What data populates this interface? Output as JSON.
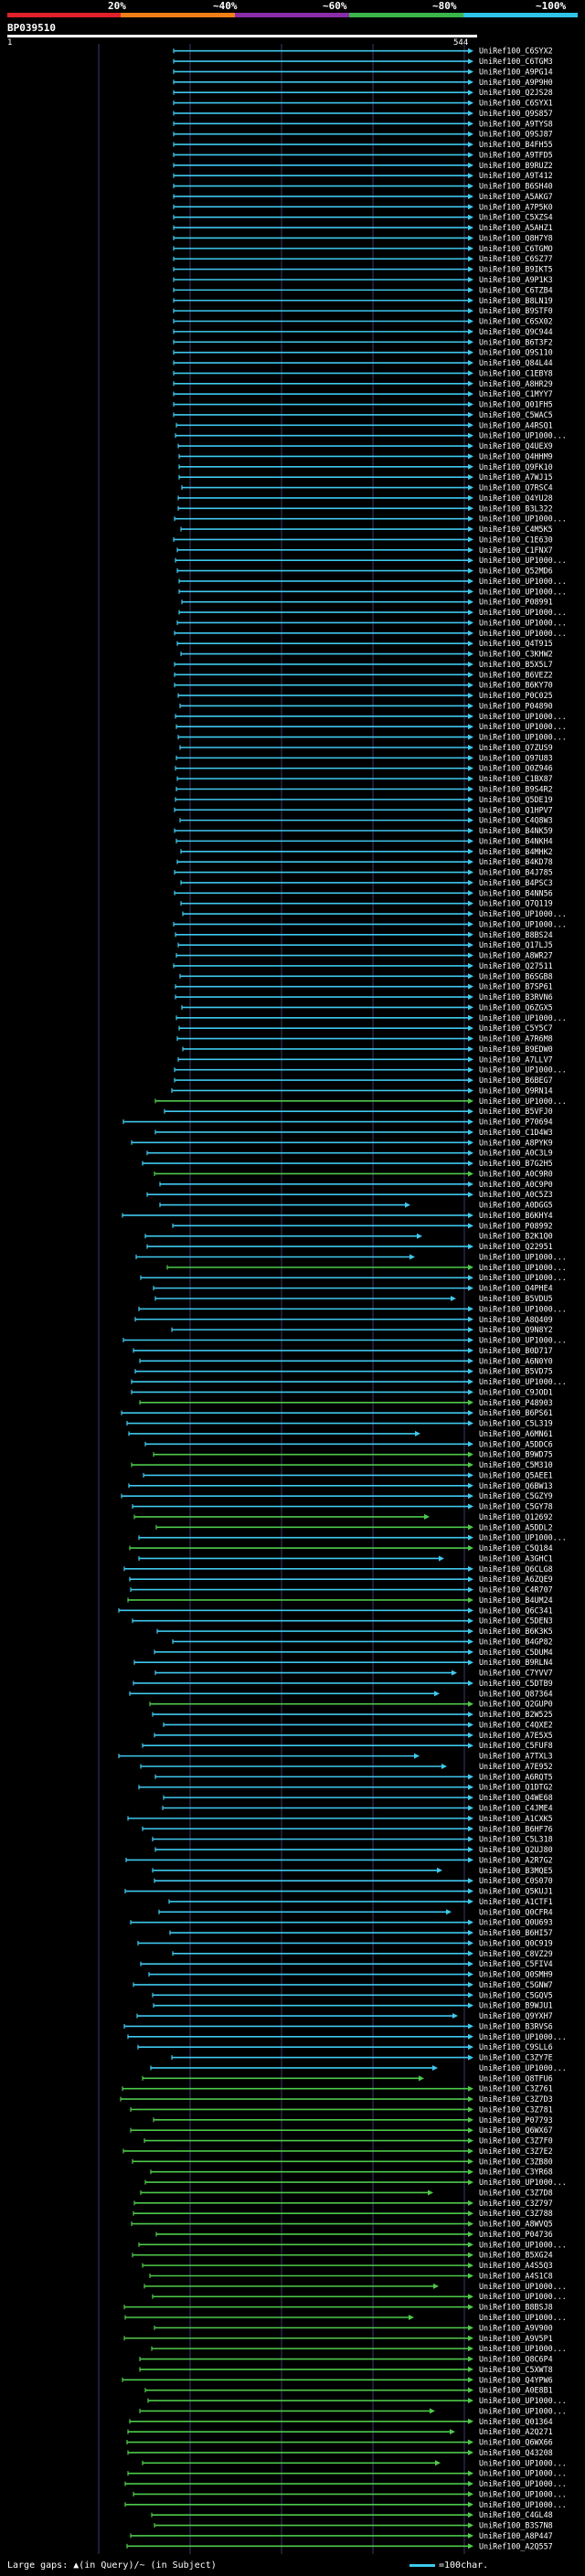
{
  "scale": {
    "labels": [
      "20%",
      "~40%",
      "~60%",
      "~80%",
      "~100%"
    ],
    "colors": [
      "#e0202a",
      "#f07f18",
      "#8b2ca8",
      "#3ab54a",
      "#2ec4e8"
    ]
  },
  "query": {
    "id": "BP039510",
    "start": "1",
    "end": "544"
  },
  "colors": {
    "cyan": "#3fc8ee",
    "green": "#4ec94a",
    "grid": "#3a3a6a"
  },
  "hits": [
    "UniRef100_C6SYX2",
    "UniRef100_C6TGM3",
    "UniRef100_A9PG14",
    "UniRef100_A9P9H0",
    "UniRef100_Q2JS28",
    "UniRef100_C6SYX1",
    "UniRef100_Q9S857",
    "UniRef100_A9TYS8",
    "UniRef100_Q9SJ87",
    "UniRef100_B4FH55",
    "UniRef100_A9TFD5",
    "UniRef100_B9RUZ2",
    "UniRef100_A9T412",
    "UniRef100_B6SH40",
    "UniRef100_A5AKG7",
    "UniRef100_A7P5K0",
    "UniRef100_C5XZS4",
    "UniRef100_A5AHZ1",
    "UniRef100_Q8H7Y8",
    "UniRef100_C6TGMO",
    "UniRef100_C6SZ77",
    "UniRef100_B9IKT5",
    "UniRef100_A9P1K3",
    "UniRef100_C6TZB4",
    "UniRef100_B8LN19",
    "UniRef100_B9STF0",
    "UniRef100_C6SX02",
    "UniRef100_Q9C944",
    "UniRef100_B6T3F2",
    "UniRef100_Q9S110",
    "UniRef100_Q84L44",
    "UniRef100_C1EBY8",
    "UniRef100_A8HR29",
    "UniRef100_C1MYY7",
    "UniRef100_Q01FH5",
    "UniRef100_C5WAC5",
    "UniRef100_A4RSQ1",
    "UniRef100_UP1000...",
    "UniRef100_Q4UEX9",
    "UniRef100_Q4HHM9",
    "UniRef100_Q9FK10",
    "UniRef100_A7WJ15",
    "UniRef100_Q7RSC4",
    "UniRef100_Q4YU28",
    "UniRef100_B3L322",
    "UniRef100_UP1000...",
    "UniRef100_C4M5K5",
    "UniRef100_C1E630",
    "UniRef100_C1FNX7",
    "UniRef100_UP1000...",
    "UniRef100_Q52MD6",
    "UniRef100_UP1000...",
    "UniRef100_UP1000...",
    "UniRef100_P08991",
    "UniRef100_UP1000...",
    "UniRef100_UP1000...",
    "UniRef100_UP1000...",
    "UniRef100_Q4T915",
    "UniRef100_C3KHW2",
    "UniRef100_B5X5L7",
    "UniRef100_B6VEZ2",
    "UniRef100_B6KY70",
    "UniRef100_P0C025",
    "UniRef100_P04890",
    "UniRef100_UP1000...",
    "UniRef100_UP1000...",
    "UniRef100_UP1000...",
    "UniRef100_Q7ZUS9",
    "UniRef100_Q97U83",
    "UniRef100_Q0Z946",
    "UniRef100_C1BX87",
    "UniRef100_B9S4R2",
    "UniRef100_Q5DE19",
    "UniRef100_Q1HPV7",
    "UniRef100_C4Q8W3",
    "UniRef100_B4NK59",
    "UniRef100_B4NKH4",
    "UniRef100_B4MHK2",
    "UniRef100_B4KD78",
    "UniRef100_B4J785",
    "UniRef100_B4PSC3",
    "UniRef100_B4NN56",
    "UniRef100_Q7Q119",
    "UniRef100_UP1000...",
    "UniRef100_UP1000...",
    "UniRef100_B8BS24",
    "UniRef100_Q17LJ5",
    "UniRef100_A8WR27",
    "UniRef100_Q27511",
    "UniRef100_B6SGB8",
    "UniRef100_B7SP61",
    "UniRef100_B3RVN6",
    "UniRef100_Q6ZGX5",
    "UniRef100_UP1000...",
    "UniRef100_C5Y5C7",
    "UniRef100_A7R6M8",
    "UniRef100_B9EDW0",
    "UniRef100_A7LLV7",
    "UniRef100_UP1000...",
    "UniRef100_B6BEG7",
    "UniRef100_Q9RN14",
    "UniRef100_UP1000...",
    "UniRef100_B5VFJ0",
    "UniRef100_P70694",
    "UniRef100_C1D4W3",
    "UniRef100_A8PYK9",
    "UniRef100_A0C3L9",
    "UniRef100_B7G2H5",
    "UniRef100_A0C9R0",
    "UniRef100_A0C9P0",
    "UniRef100_A0C5Z3",
    "UniRef100_A0DGG5",
    "UniRef100_B6KHY4",
    "UniRef100_P08992",
    "UniRef100_B2K1Q0",
    "UniRef100_Q22951",
    "UniRef100_UP1000...",
    "UniRef100_UP1000...",
    "UniRef100_UP1000...",
    "UniRef100_Q4PHE4",
    "UniRef100_B5VDU5",
    "UniRef100_UP1000...",
    "UniRef100_A8Q409",
    "UniRef100_Q9N8Y2",
    "UniRef100_UP1000...",
    "UniRef100_B0D717",
    "UniRef100_A6N0Y0",
    "UniRef100_B5VD75",
    "UniRef100_UP1000...",
    "UniRef100_C9JOD1",
    "UniRef100_P48903",
    "UniRef100_B6PS61",
    "UniRef100_C5L319",
    "UniRef100_A6MN61",
    "UniRef100_A5DDC6",
    "UniRef100_B9WD75",
    "UniRef100_C5M310",
    "UniRef100_Q5AEE1",
    "UniRef100_Q6BW13",
    "UniRef100_C5GZY9",
    "UniRef100_C5GY78",
    "UniRef100_Q12692",
    "UniRef100_A5DDL2",
    "UniRef100_UP1000...",
    "UniRef100_C5Q184",
    "UniRef100_A3GHC1",
    "UniRef100_Q6CLG8",
    "UniRef100_A6ZQE9",
    "UniRef100_C4R707",
    "UniRef100_B4UM24",
    "UniRef100_Q6C341",
    "UniRef100_C5DEN3",
    "UniRef100_B6K3K5",
    "UniRef100_B4GP82",
    "UniRef100_C5DUM4",
    "UniRef100_B9RLN4",
    "UniRef100_C7YVV7",
    "UniRef100_C5DTB9",
    "UniRef100_Q87364",
    "UniRef100_Q2GUP0",
    "UniRef100_B2W525",
    "UniRef100_C4QXE2",
    "UniRef100_A7E5X5",
    "UniRef100_C5FUF8",
    "UniRef100_A7TXL3",
    "UniRef100_A7E952",
    "UniRef100_A6RQT5",
    "UniRef100_Q1DTG2",
    "UniRef100_Q4WE68",
    "UniRef100_C4JME4",
    "UniRef100_A1CXK5",
    "UniRef100_B6HF76",
    "UniRef100_C5L318",
    "UniRef100_Q2UJ80",
    "UniRef100_A2R7G2",
    "UniRef100_B3MQE5",
    "UniRef100_C0S070",
    "UniRef100_Q5KUJ1",
    "UniRef100_A1CTF1",
    "UniRef100_Q0CFR4",
    "UniRef100_Q0U693",
    "UniRef100_B6HI57",
    "UniRef100_Q0C919",
    "UniRef100_C8VZ29",
    "UniRef100_C5FIV4",
    "UniRef100_Q0SMH9",
    "UniRef100_C5GNW7",
    "UniRef100_C5GQV5",
    "UniRef100_B9WJU1",
    "UniRef100_Q9YXH7",
    "UniRef100_B3RVS6",
    "UniRef100_UP1000...",
    "UniRef100_C9SLL6",
    "UniRef100_C3ZY7E",
    "UniRef100_UP1000...",
    "UniRef100_Q8TFU6",
    "UniRef100_C3Z761",
    "UniRef100_C3Z7D3",
    "UniRef100_C3Z781",
    "UniRef100_P07793",
    "UniRef100_Q6WX67",
    "UniRef100_C3Z7F0",
    "UniRef100_C3Z7E2",
    "UniRef100_C3ZB80",
    "UniRef100_C3YR68",
    "UniRef100_UP1000...",
    "UniRef100_C3Z7D8",
    "UniRef100_C3Z797",
    "UniRef100_C3Z788",
    "UniRef100_A8WVQ5",
    "UniRef100_P04736",
    "UniRef100_UP1000...",
    "UniRef100_B5XG24",
    "UniRef100_A4S5Q3",
    "UniRef100_A4S1C8",
    "UniRef100_UP1000...",
    "UniRef100_UP1000...",
    "UniRef100_B8BSJ8",
    "UniRef100_UP1000...",
    "UniRef100_A9V900",
    "UniRef100_A9V5P1",
    "UniRef100_UP1000...",
    "UniRef100_Q8C6P4",
    "UniRef100_C5XWT8",
    "UniRef100_Q4YPW6",
    "UniRef100_A0E8B1",
    "UniRef100_UP1000...",
    "UniRef100_UP1000...",
    "UniRef100_Q01364",
    "UniRef100_A2Q271",
    "UniRef100_Q6WX66",
    "UniRef100_Q43208",
    "UniRef100_UP1000...",
    "UniRef100_UP1000...",
    "UniRef100_UP1000...",
    "UniRef100_UP1000...",
    "UniRef100_UP1000...",
    "UniRef100_C4GL48",
    "UniRef100_B3S7N8",
    "UniRef100_A8P447",
    "UniRef100_A2Q557"
  ],
  "legend": {
    "gaps_text": "Large gaps: ▲(in Query)/~ (in Subject)",
    "scale_text": "=100char."
  }
}
